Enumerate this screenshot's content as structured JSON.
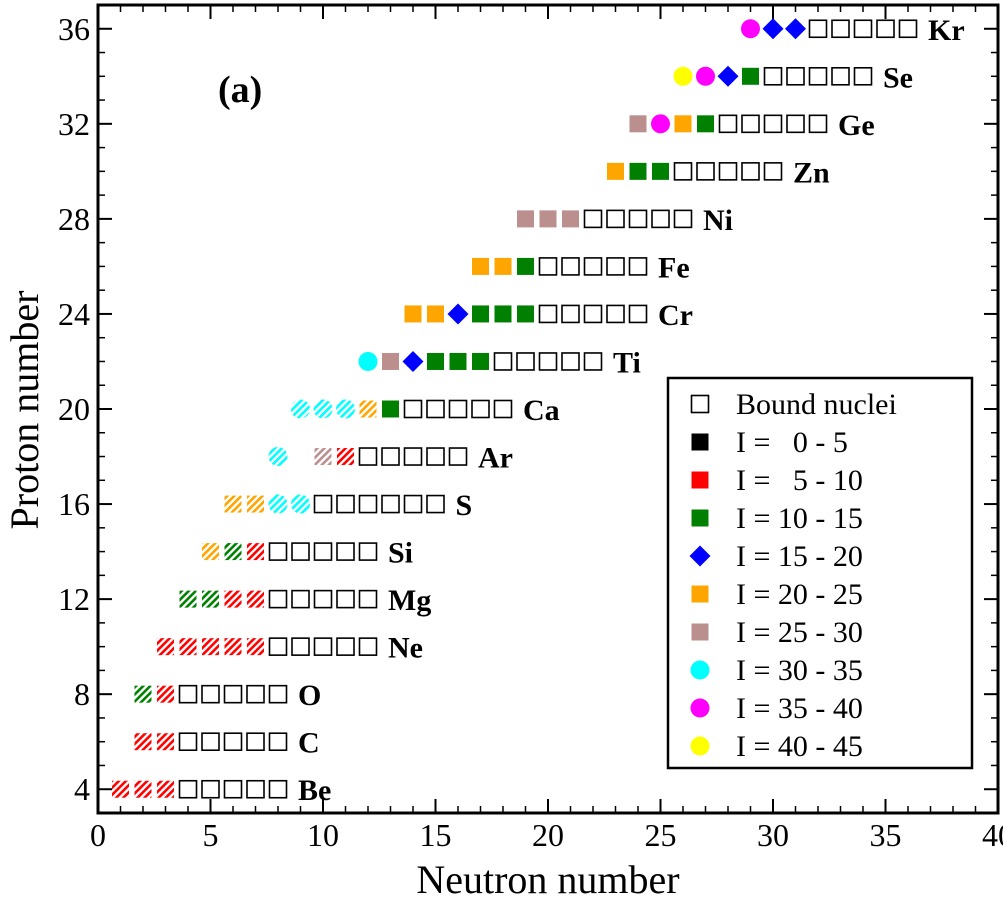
{
  "chart_data": {
    "type": "scatter",
    "panel_label": "(a)",
    "xlabel": "Neutron number",
    "ylabel": "Proton number",
    "xlim": [
      0,
      40
    ],
    "ylim": [
      3,
      37
    ],
    "xticks": [
      0,
      5,
      10,
      15,
      20,
      25,
      30,
      35,
      40
    ],
    "yticks": [
      4,
      8,
      12,
      16,
      20,
      24,
      28,
      32,
      36
    ],
    "legend": {
      "placement": "bottom-right",
      "entries": [
        {
          "key": "bound",
          "label": "Bound nuclei",
          "shape": "open-square",
          "color": "#000000"
        },
        {
          "key": "I0",
          "label": "I =   0 - 5",
          "shape": "square",
          "color": "#000000"
        },
        {
          "key": "I5",
          "label": "I =   5 - 10",
          "shape": "square",
          "color": "#ff0000"
        },
        {
          "key": "I10",
          "label": "I = 10 - 15",
          "shape": "square",
          "color": "#008000"
        },
        {
          "key": "I15",
          "label": "I = 15 - 20",
          "shape": "diamond",
          "color": "#0000ff"
        },
        {
          "key": "I20",
          "label": "I = 20 - 25",
          "shape": "square",
          "color": "#ffa500"
        },
        {
          "key": "I25",
          "label": "I = 25 - 30",
          "shape": "square",
          "color": "#bc8f8f"
        },
        {
          "key": "I30",
          "label": "I = 30 - 35",
          "shape": "circle",
          "color": "#00ffff"
        },
        {
          "key": "I35",
          "label": "I = 35 - 40",
          "shape": "circle",
          "color": "#ff00ff"
        },
        {
          "key": "I40",
          "label": "I = 40 - 45",
          "shape": "circle",
          "color": "#ffff00"
        }
      ]
    },
    "series": [
      {
        "name": "Be",
        "Z": 4,
        "points": [
          {
            "N": 1,
            "cat": "I5",
            "hatched": true
          },
          {
            "N": 2,
            "cat": "I5",
            "hatched": true
          },
          {
            "N": 3,
            "cat": "I5",
            "hatched": true
          },
          {
            "N": 4,
            "cat": "bound"
          },
          {
            "N": 5,
            "cat": "bound"
          },
          {
            "N": 6,
            "cat": "bound"
          },
          {
            "N": 7,
            "cat": "bound"
          },
          {
            "N": 8,
            "cat": "bound"
          }
        ]
      },
      {
        "name": "C",
        "Z": 6,
        "points": [
          {
            "N": 2,
            "cat": "I5",
            "hatched": true
          },
          {
            "N": 3,
            "cat": "I5",
            "hatched": true
          },
          {
            "N": 4,
            "cat": "bound"
          },
          {
            "N": 5,
            "cat": "bound"
          },
          {
            "N": 6,
            "cat": "bound"
          },
          {
            "N": 7,
            "cat": "bound"
          },
          {
            "N": 8,
            "cat": "bound"
          }
        ]
      },
      {
        "name": "O",
        "Z": 8,
        "points": [
          {
            "N": 2,
            "cat": "I10",
            "hatched": true
          },
          {
            "N": 3,
            "cat": "I5",
            "hatched": true
          },
          {
            "N": 4,
            "cat": "bound"
          },
          {
            "N": 5,
            "cat": "bound"
          },
          {
            "N": 6,
            "cat": "bound"
          },
          {
            "N": 7,
            "cat": "bound"
          },
          {
            "N": 8,
            "cat": "bound"
          }
        ]
      },
      {
        "name": "Ne",
        "Z": 10,
        "points": [
          {
            "N": 3,
            "cat": "I5",
            "hatched": true
          },
          {
            "N": 4,
            "cat": "I5",
            "hatched": true
          },
          {
            "N": 5,
            "cat": "I5",
            "hatched": true
          },
          {
            "N": 6,
            "cat": "I5",
            "hatched": true
          },
          {
            "N": 7,
            "cat": "I5",
            "hatched": true
          },
          {
            "N": 8,
            "cat": "bound"
          },
          {
            "N": 9,
            "cat": "bound"
          },
          {
            "N": 10,
            "cat": "bound"
          },
          {
            "N": 11,
            "cat": "bound"
          },
          {
            "N": 12,
            "cat": "bound"
          }
        ]
      },
      {
        "name": "Mg",
        "Z": 12,
        "points": [
          {
            "N": 4,
            "cat": "I10",
            "hatched": true
          },
          {
            "N": 5,
            "cat": "I10",
            "hatched": true
          },
          {
            "N": 6,
            "cat": "I5",
            "hatched": true
          },
          {
            "N": 7,
            "cat": "I5",
            "hatched": true
          },
          {
            "N": 8,
            "cat": "bound"
          },
          {
            "N": 9,
            "cat": "bound"
          },
          {
            "N": 10,
            "cat": "bound"
          },
          {
            "N": 11,
            "cat": "bound"
          },
          {
            "N": 12,
            "cat": "bound"
          }
        ]
      },
      {
        "name": "Si",
        "Z": 14,
        "points": [
          {
            "N": 5,
            "cat": "I20",
            "hatched": true
          },
          {
            "N": 6,
            "cat": "I10",
            "hatched": true
          },
          {
            "N": 7,
            "cat": "I5",
            "hatched": true
          },
          {
            "N": 8,
            "cat": "bound"
          },
          {
            "N": 9,
            "cat": "bound"
          },
          {
            "N": 10,
            "cat": "bound"
          },
          {
            "N": 11,
            "cat": "bound"
          },
          {
            "N": 12,
            "cat": "bound"
          }
        ]
      },
      {
        "name": "S",
        "Z": 16,
        "points": [
          {
            "N": 6,
            "cat": "I20",
            "hatched": true
          },
          {
            "N": 7,
            "cat": "I20",
            "hatched": true
          },
          {
            "N": 8,
            "cat": "I30",
            "hatched": true
          },
          {
            "N": 9,
            "cat": "I30",
            "hatched": true
          },
          {
            "N": 10,
            "cat": "bound"
          },
          {
            "N": 11,
            "cat": "bound"
          },
          {
            "N": 12,
            "cat": "bound"
          },
          {
            "N": 13,
            "cat": "bound"
          },
          {
            "N": 14,
            "cat": "bound"
          },
          {
            "N": 15,
            "cat": "bound"
          }
        ]
      },
      {
        "name": "Ar",
        "Z": 18,
        "points": [
          {
            "N": 8,
            "cat": "I30",
            "hatched": true
          },
          {
            "N": 10,
            "cat": "I25",
            "hatched": true
          },
          {
            "N": 11,
            "cat": "I5",
            "hatched": true
          },
          {
            "N": 12,
            "cat": "bound"
          },
          {
            "N": 13,
            "cat": "bound"
          },
          {
            "N": 14,
            "cat": "bound"
          },
          {
            "N": 15,
            "cat": "bound"
          },
          {
            "N": 16,
            "cat": "bound"
          }
        ]
      },
      {
        "name": "Ca",
        "Z": 20,
        "points": [
          {
            "N": 9,
            "cat": "I30",
            "hatched": true
          },
          {
            "N": 10,
            "cat": "I30",
            "hatched": true
          },
          {
            "N": 11,
            "cat": "I30",
            "hatched": true
          },
          {
            "N": 12,
            "cat": "I20",
            "hatched": true
          },
          {
            "N": 13,
            "cat": "I10"
          },
          {
            "N": 14,
            "cat": "bound"
          },
          {
            "N": 15,
            "cat": "bound"
          },
          {
            "N": 16,
            "cat": "bound"
          },
          {
            "N": 17,
            "cat": "bound"
          },
          {
            "N": 18,
            "cat": "bound"
          }
        ]
      },
      {
        "name": "Ti",
        "Z": 22,
        "points": [
          {
            "N": 12,
            "cat": "I30"
          },
          {
            "N": 13,
            "cat": "I25"
          },
          {
            "N": 14,
            "cat": "I15"
          },
          {
            "N": 15,
            "cat": "I10"
          },
          {
            "N": 16,
            "cat": "I10"
          },
          {
            "N": 17,
            "cat": "I10"
          },
          {
            "N": 18,
            "cat": "bound"
          },
          {
            "N": 19,
            "cat": "bound"
          },
          {
            "N": 20,
            "cat": "bound"
          },
          {
            "N": 21,
            "cat": "bound"
          },
          {
            "N": 22,
            "cat": "bound"
          }
        ]
      },
      {
        "name": "Cr",
        "Z": 24,
        "points": [
          {
            "N": 14,
            "cat": "I20"
          },
          {
            "N": 15,
            "cat": "I20"
          },
          {
            "N": 16,
            "cat": "I15"
          },
          {
            "N": 17,
            "cat": "I10"
          },
          {
            "N": 18,
            "cat": "I10"
          },
          {
            "N": 19,
            "cat": "I10"
          },
          {
            "N": 20,
            "cat": "bound"
          },
          {
            "N": 21,
            "cat": "bound"
          },
          {
            "N": 22,
            "cat": "bound"
          },
          {
            "N": 23,
            "cat": "bound"
          },
          {
            "N": 24,
            "cat": "bound"
          }
        ]
      },
      {
        "name": "Fe",
        "Z": 26,
        "points": [
          {
            "N": 17,
            "cat": "I20"
          },
          {
            "N": 18,
            "cat": "I20"
          },
          {
            "N": 19,
            "cat": "I10"
          },
          {
            "N": 20,
            "cat": "bound"
          },
          {
            "N": 21,
            "cat": "bound"
          },
          {
            "N": 22,
            "cat": "bound"
          },
          {
            "N": 23,
            "cat": "bound"
          },
          {
            "N": 24,
            "cat": "bound"
          }
        ]
      },
      {
        "name": "Ni",
        "Z": 28,
        "points": [
          {
            "N": 19,
            "cat": "I25"
          },
          {
            "N": 20,
            "cat": "I25"
          },
          {
            "N": 21,
            "cat": "I25"
          },
          {
            "N": 22,
            "cat": "bound"
          },
          {
            "N": 23,
            "cat": "bound"
          },
          {
            "N": 24,
            "cat": "bound"
          },
          {
            "N": 25,
            "cat": "bound"
          },
          {
            "N": 26,
            "cat": "bound"
          }
        ]
      },
      {
        "name": "Zn",
        "Z": 30,
        "points": [
          {
            "N": 23,
            "cat": "I20"
          },
          {
            "N": 24,
            "cat": "I10"
          },
          {
            "N": 25,
            "cat": "I10"
          },
          {
            "N": 26,
            "cat": "bound"
          },
          {
            "N": 27,
            "cat": "bound"
          },
          {
            "N": 28,
            "cat": "bound"
          },
          {
            "N": 29,
            "cat": "bound"
          },
          {
            "N": 30,
            "cat": "bound"
          }
        ]
      },
      {
        "name": "Ge",
        "Z": 32,
        "points": [
          {
            "N": 24,
            "cat": "I25"
          },
          {
            "N": 25,
            "cat": "I35"
          },
          {
            "N": 26,
            "cat": "I20"
          },
          {
            "N": 27,
            "cat": "I10"
          },
          {
            "N": 28,
            "cat": "bound"
          },
          {
            "N": 29,
            "cat": "bound"
          },
          {
            "N": 30,
            "cat": "bound"
          },
          {
            "N": 31,
            "cat": "bound"
          },
          {
            "N": 32,
            "cat": "bound"
          }
        ]
      },
      {
        "name": "Se",
        "Z": 34,
        "points": [
          {
            "N": 26,
            "cat": "I40"
          },
          {
            "N": 27,
            "cat": "I35"
          },
          {
            "N": 28,
            "cat": "I15"
          },
          {
            "N": 29,
            "cat": "I10"
          },
          {
            "N": 30,
            "cat": "bound"
          },
          {
            "N": 31,
            "cat": "bound"
          },
          {
            "N": 32,
            "cat": "bound"
          },
          {
            "N": 33,
            "cat": "bound"
          },
          {
            "N": 34,
            "cat": "bound"
          }
        ]
      },
      {
        "name": "Kr",
        "Z": 36,
        "points": [
          {
            "N": 29,
            "cat": "I35"
          },
          {
            "N": 30,
            "cat": "I15"
          },
          {
            "N": 31,
            "cat": "I15"
          },
          {
            "N": 32,
            "cat": "bound"
          },
          {
            "N": 33,
            "cat": "bound"
          },
          {
            "N": 34,
            "cat": "bound"
          },
          {
            "N": 35,
            "cat": "bound"
          },
          {
            "N": 36,
            "cat": "bound"
          }
        ]
      }
    ]
  }
}
